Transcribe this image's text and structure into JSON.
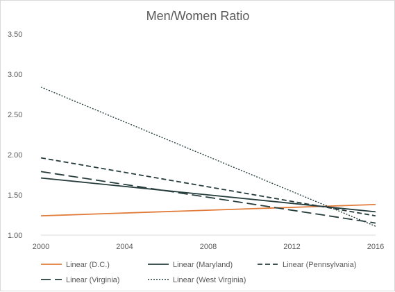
{
  "chart_data": {
    "type": "line",
    "title": "Men/Women Ratio",
    "xlabel": "",
    "ylabel": "",
    "xlim": [
      2000,
      2016
    ],
    "ylim": [
      1.0,
      3.5
    ],
    "x_ticks": [
      2000,
      2004,
      2008,
      2012,
      2016
    ],
    "x_tick_labels": [
      "2000",
      "2004",
      "2008",
      "2012",
      "2016"
    ],
    "y_ticks": [
      1.0,
      1.5,
      2.0,
      2.5,
      3.0,
      3.5
    ],
    "y_tick_labels": [
      "1.00",
      "1.50",
      "2.00",
      "2.50",
      "3.00",
      "3.50"
    ],
    "grid": false,
    "legend_position": "bottom",
    "series": [
      {
        "name": "Linear (D.C.)",
        "x": [
          2000,
          2016
        ],
        "y": [
          1.24,
          1.38
        ],
        "color": "#e07b39",
        "dash": "solid"
      },
      {
        "name": "Linear (Maryland)",
        "x": [
          2000,
          2016
        ],
        "y": [
          1.71,
          1.29
        ],
        "color": "#263c3c",
        "dash": "solid"
      },
      {
        "name": "Linear (Pennsylvania)",
        "x": [
          2000,
          2016
        ],
        "y": [
          1.96,
          1.24
        ],
        "color": "#263c3c",
        "dash": "short-dash"
      },
      {
        "name": "Linear (Virginia)",
        "x": [
          2000,
          2016
        ],
        "y": [
          1.79,
          1.15
        ],
        "color": "#263c3c",
        "dash": "long-dash"
      },
      {
        "name": "Linear (West Virginia)",
        "x": [
          2000,
          2016
        ],
        "y": [
          2.84,
          1.11
        ],
        "color": "#263c3c",
        "dash": "dotted"
      }
    ]
  }
}
